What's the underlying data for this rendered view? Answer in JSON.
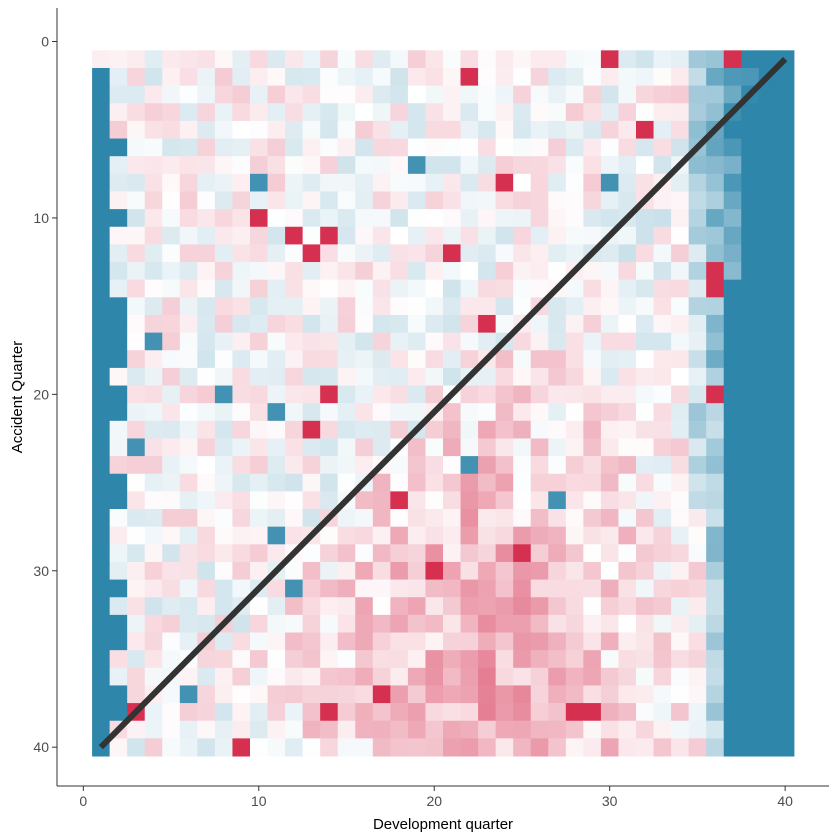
{
  "chart_data": {
    "type": "heatmap",
    "title": "",
    "xlabel": "Development quarter",
    "ylabel": "Accident Quarter",
    "xlim": [
      -1.5,
      42.5
    ],
    "ylim": [
      42.2,
      -1.9
    ],
    "y_reversed": true,
    "x_ticks": [
      0,
      10,
      20,
      30,
      40
    ],
    "y_ticks": [
      0,
      10,
      20,
      30,
      40
    ],
    "x_tick_labels": [
      "0",
      "10",
      "20",
      "30",
      "40"
    ],
    "y_tick_labels": [
      "0",
      "10",
      "20",
      "30",
      "40"
    ],
    "grid": false,
    "legend": "none",
    "cells": {
      "x_values": [
        1,
        40
      ],
      "y_values": [
        1,
        40
      ],
      "color_scale": {
        "low": "#2e86ab",
        "mid": "#ffffff",
        "high": "#d1193e"
      },
      "value_range": [
        -1,
        1
      ],
      "values_estimated": true
    },
    "diagonal_line": {
      "points": [
        [
          1,
          40
        ],
        [
          40,
          1
        ]
      ],
      "color": "#333333"
    },
    "colors": {
      "axis": "#333333",
      "background": "#ffffff"
    }
  }
}
